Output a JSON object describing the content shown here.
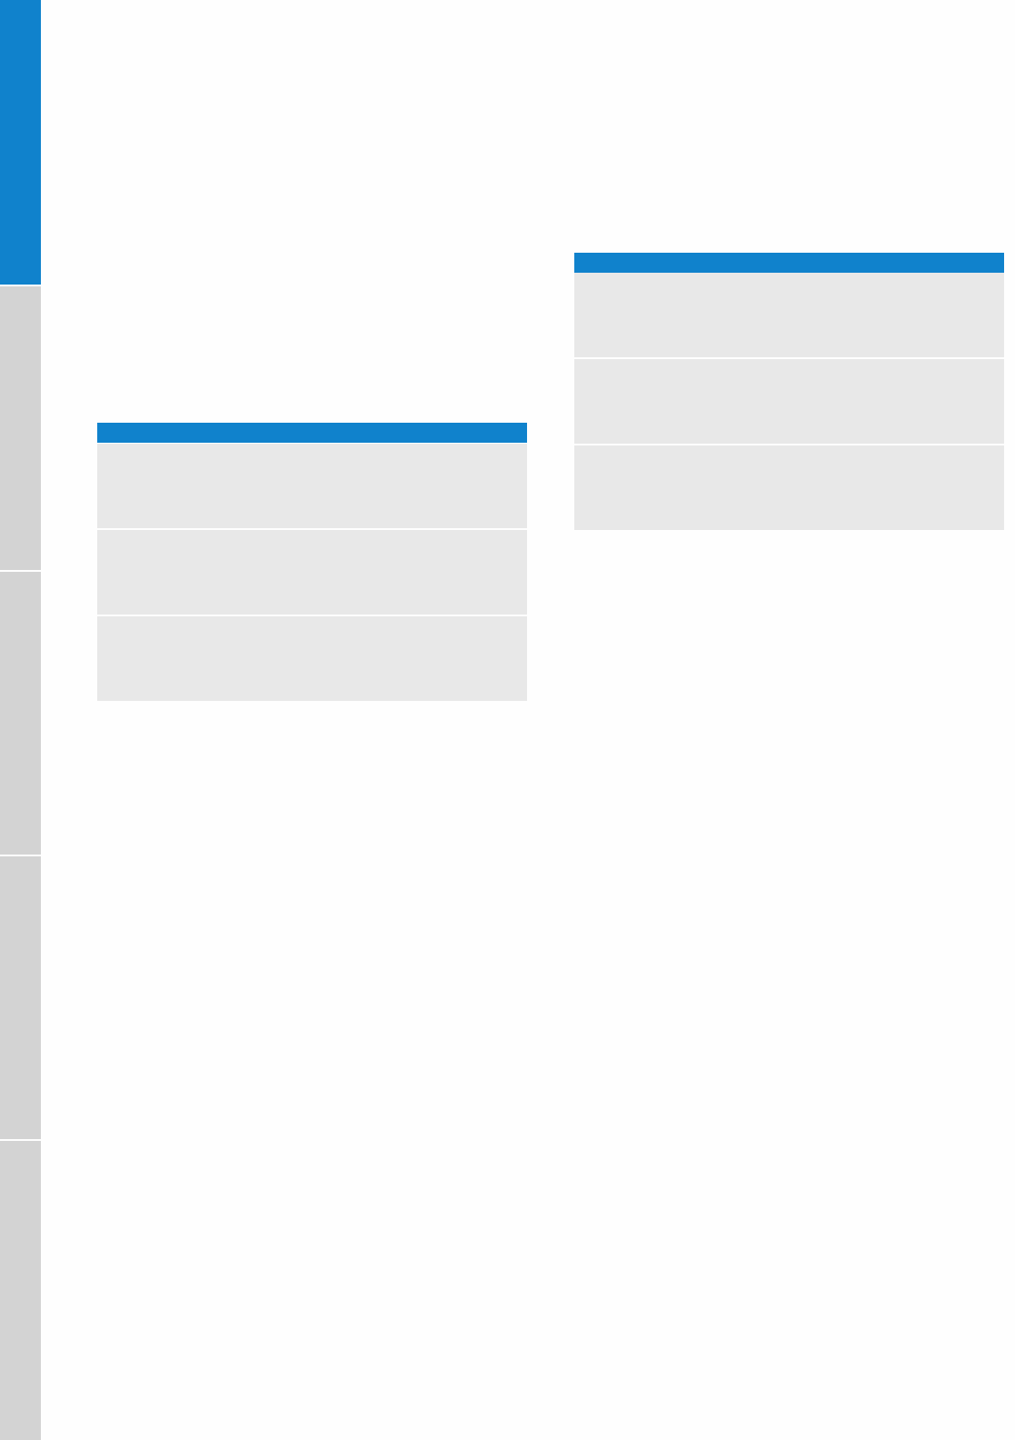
{
  "colors": {
    "accent": "#1082cc",
    "tab_inactive": "#d3d3d3",
    "row_fill": "#e8e8e8",
    "page": "#fefefe"
  },
  "side_tabs": [
    {
      "active": true
    },
    {
      "active": false
    },
    {
      "active": false
    },
    {
      "active": false
    },
    {
      "active": false
    }
  ],
  "tables": [
    {
      "header": "",
      "rows": [
        "",
        "",
        ""
      ]
    },
    {
      "header": "",
      "rows": [
        "",
        "",
        ""
      ]
    }
  ]
}
